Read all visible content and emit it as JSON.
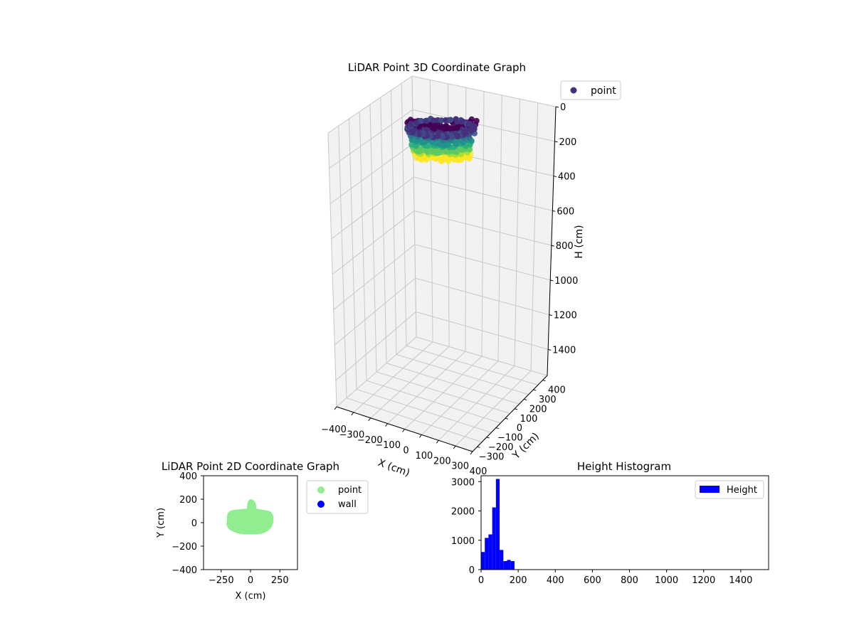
{
  "colors": {
    "wall": "#0000ff",
    "point_2d": "#90ee90",
    "histogram": "#0000ff",
    "legend_3d_marker": "#46307d",
    "pane": "#f2f2f2",
    "grid": "#cccccc"
  },
  "chart_data": [
    {
      "type": "scatter3d",
      "title": "LiDAR Point 3D Coordinate Graph",
      "xlabel": "X (cm)",
      "ylabel": "Y (cm)",
      "zlabel": "H (cm)",
      "xticks": [
        "−400",
        "−300",
        "−200",
        "−100",
        "0",
        "100",
        "200",
        "300",
        "400"
      ],
      "yticks": [
        "−300",
        "−200",
        "−100",
        "0",
        "100",
        "200",
        "300",
        "400"
      ],
      "zticks": [
        "0",
        "200",
        "400",
        "600",
        "800",
        "1000",
        "1200",
        "1400"
      ],
      "xlim": [
        -400,
        400
      ],
      "ylim": [
        -400,
        400
      ],
      "zlim": [
        0,
        1550
      ],
      "z_inverted": true,
      "colormap": "viridis",
      "legend": [
        "point"
      ],
      "legend_position": "top-right",
      "grid": true
    },
    {
      "type": "scatter",
      "title": "LiDAR Point 2D Coordinate Graph",
      "xlabel": "X (cm)",
      "ylabel": "Y (cm)",
      "xticks": [
        "−250",
        "0",
        "250"
      ],
      "yticks": [
        "400",
        "200",
        "0",
        "−200",
        "−400"
      ],
      "xlim": [
        -400,
        400
      ],
      "ylim": [
        -400,
        400
      ],
      "legend": [
        "point",
        "wall"
      ],
      "legend_position": "outside-right",
      "grid": false
    },
    {
      "type": "bar",
      "title": "Height Histogram",
      "xticks": [
        "0",
        "200",
        "400",
        "600",
        "800",
        "1000",
        "1200",
        "1400"
      ],
      "yticks": [
        "0",
        "1000",
        "2000",
        "3000"
      ],
      "xlim": [
        0,
        1550
      ],
      "ylim": [
        0,
        3200
      ],
      "series": [
        {
          "name": "Height",
          "x": [
            10,
            30,
            50,
            70,
            90,
            110,
            130,
            150
          ],
          "values": [
            600,
            1080,
            1200,
            2120,
            3090,
            670,
            290,
            330
          ]
        }
      ],
      "extra_bins": [
        {
          "x": 170,
          "value": 290
        },
        {
          "x": 160,
          "value": 30
        }
      ],
      "legend_position": "top-right",
      "grid": false
    }
  ]
}
